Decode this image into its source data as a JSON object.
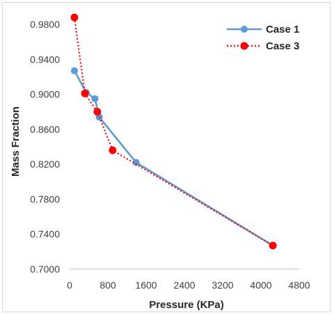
{
  "chart_data": {
    "type": "line",
    "title": "",
    "xlabel": "Pressure (KPa)",
    "ylabel": "Mass Fraction",
    "xlim": [
      0,
      4800
    ],
    "ylim": [
      0.7,
      1.0
    ],
    "x_ticks": [
      "0",
      "800",
      "1600",
      "2400",
      "3200",
      "4000",
      "4800"
    ],
    "y_ticks": [
      "0.7000",
      "0.7400",
      "0.7800",
      "0.8200",
      "0.8600",
      "0.9000",
      "0.9400",
      "0.9800"
    ],
    "grid": "none",
    "legend_position": "top-right",
    "series": [
      {
        "name": "Case 1",
        "color": "#5b9bd5",
        "line_style": "solid",
        "points": [
          {
            "x": 101,
            "y": 0.927
          },
          {
            "x": 350,
            "y": 0.902
          },
          {
            "x": 530,
            "y": 0.895
          },
          {
            "x": 620,
            "y": 0.874
          },
          {
            "x": 1390,
            "y": 0.822
          },
          {
            "x": 4250,
            "y": 0.727
          }
        ]
      },
      {
        "name": "Case 3",
        "color": "#ff0000",
        "line_style": "dotted",
        "points": [
          {
            "x": 101,
            "y": 0.988
          },
          {
            "x": 320,
            "y": 0.901
          },
          {
            "x": 580,
            "y": 0.88
          },
          {
            "x": 900,
            "y": 0.836
          },
          {
            "x": 4250,
            "y": 0.727
          }
        ]
      }
    ]
  }
}
